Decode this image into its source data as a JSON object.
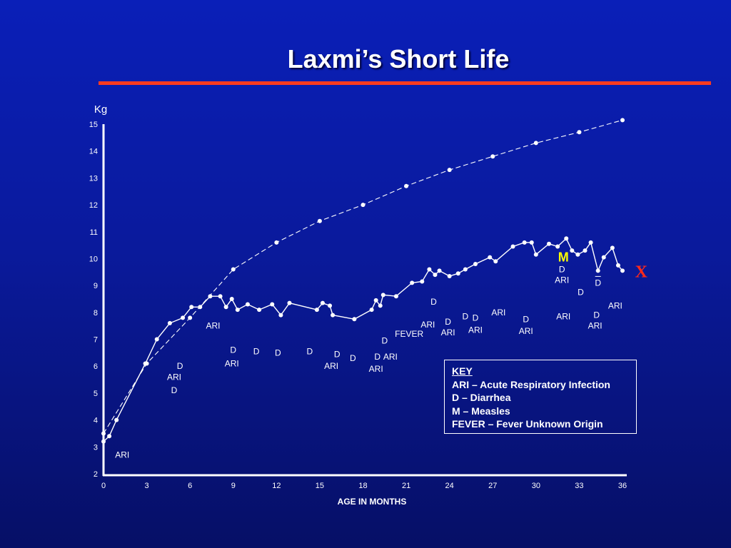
{
  "title": "Laxmi’s Short Life",
  "key": {
    "title": "KEY",
    "items": [
      "ARI – Acute Respiratory Infection",
      "D – Diarrhea",
      "M – Measles",
      "FEVER – Fever Unknown Origin"
    ]
  },
  "colors": {
    "background": "#0a1a9c",
    "title_rule": "#ff3b1f",
    "measles_marker": "#ffff00",
    "death_marker": "#ff2a1a",
    "lines": "#ffffff"
  },
  "chart_data": {
    "type": "line",
    "title": "Laxmi’s Short Life",
    "xlabel": "AGE IN MONTHS",
    "ylabel": "Kg",
    "xlim": [
      0,
      36
    ],
    "ylim": [
      2,
      15
    ],
    "xticks": [
      0,
      3,
      6,
      9,
      12,
      15,
      18,
      21,
      24,
      27,
      30,
      33,
      36
    ],
    "yticks": [
      2,
      3,
      4,
      5,
      6,
      7,
      8,
      9,
      10,
      11,
      12,
      13,
      14,
      15
    ],
    "grid": false,
    "series": [
      {
        "style": "dashed",
        "x": [
          0.0,
          3.0,
          6.0,
          9.0,
          12.0,
          15.0,
          18.0,
          21.0,
          24.0,
          27.0,
          30.0,
          33.0,
          36.0
        ],
        "y": [
          3.5,
          6.1,
          7.8,
          9.6,
          10.6,
          11.4,
          12.0,
          12.7,
          13.3,
          13.8,
          14.3,
          14.7,
          15.15
        ]
      },
      {
        "style": "solid",
        "x": [
          0.0,
          0.4,
          0.9,
          2.9,
          3.7,
          4.6,
          5.5,
          6.1,
          6.7,
          7.4,
          8.1,
          8.5,
          8.9,
          9.3,
          10.0,
          10.8,
          11.7,
          12.3,
          12.9,
          14.8,
          15.2,
          15.7,
          15.9,
          17.4,
          18.6,
          18.9,
          19.2,
          19.4,
          20.3,
          21.4,
          22.1,
          22.6,
          23.0,
          23.3,
          24.0,
          24.6,
          25.1,
          25.8,
          26.8,
          27.2,
          28.4,
          29.2,
          29.7,
          30.0,
          30.9,
          31.5,
          32.1,
          32.5,
          32.9,
          33.4,
          33.8,
          34.3,
          34.7,
          35.3,
          35.7
        ],
        "y": [
          3.2,
          3.4,
          4.0,
          6.1,
          7.0,
          7.6,
          7.8,
          8.2,
          8.2,
          8.6,
          8.6,
          8.2,
          8.5,
          8.1,
          8.3,
          8.1,
          8.3,
          7.9,
          8.35,
          8.1,
          8.35,
          8.25,
          7.9,
          7.75,
          8.1,
          8.45,
          8.25,
          8.65,
          8.6,
          9.1,
          9.15,
          9.6,
          9.4,
          9.55,
          9.35,
          9.45,
          9.6,
          9.8,
          10.05,
          9.9,
          10.45,
          10.6,
          10.6,
          10.15,
          10.55,
          10.45,
          10.75,
          10.3,
          10.15,
          10.3,
          10.6,
          9.55,
          10.05,
          10.4,
          9.75
        ]
      }
    ],
    "final_point": {
      "x": 36.0,
      "y": 9.55
    },
    "markers": {
      "measles": {
        "text": "M",
        "x": 31.9,
        "y": 10.05
      },
      "death": {
        "text": "X",
        "x": 37.3,
        "y": 9.55
      }
    },
    "annotations": [
      {
        "text": "ARI",
        "x": 1.3,
        "y": 2.7
      },
      {
        "text": "D",
        "x": 5.3,
        "y": 6.0
      },
      {
        "text": "ARI",
        "x": 4.9,
        "y": 5.6
      },
      {
        "text": "D",
        "x": 4.9,
        "y": 5.1
      },
      {
        "text": "ARI",
        "x": 7.6,
        "y": 7.5
      },
      {
        "text": "D",
        "x": 9.0,
        "y": 6.6
      },
      {
        "text": "ARI",
        "x": 8.9,
        "y": 6.1
      },
      {
        "text": "D",
        "x": 10.6,
        "y": 6.55
      },
      {
        "text": "D",
        "x": 12.1,
        "y": 6.5
      },
      {
        "text": "D",
        "x": 14.3,
        "y": 6.55
      },
      {
        "text": "D",
        "x": 16.2,
        "y": 6.45
      },
      {
        "text": "ARI",
        "x": 15.8,
        "y": 6.0
      },
      {
        "text": "D",
        "x": 17.3,
        "y": 6.3
      },
      {
        "text": "D",
        "x": 19.5,
        "y": 6.95
      },
      {
        "text": "D",
        "x": 19.0,
        "y": 6.35
      },
      {
        "text": "ARI",
        "x": 19.9,
        "y": 6.35
      },
      {
        "text": "ARI",
        "x": 18.9,
        "y": 5.9
      },
      {
        "text": "FEVER",
        "x": 21.2,
        "y": 7.2
      },
      {
        "text": "ARI",
        "x": 22.5,
        "y": 7.55
      },
      {
        "text": "D",
        "x": 22.9,
        "y": 8.4
      },
      {
        "text": "D",
        "x": 23.9,
        "y": 7.65
      },
      {
        "text": "ARI",
        "x": 23.9,
        "y": 7.25
      },
      {
        "text": "D",
        "x": 25.1,
        "y": 7.85
      },
      {
        "text": "D",
        "x": 25.8,
        "y": 7.8
      },
      {
        "text": "ARI",
        "x": 25.8,
        "y": 7.35
      },
      {
        "text": "ARI",
        "x": 27.4,
        "y": 8.0
      },
      {
        "text": "D",
        "x": 29.3,
        "y": 7.75
      },
      {
        "text": "ARI",
        "x": 29.3,
        "y": 7.3
      },
      {
        "text": "D",
        "x": 31.8,
        "y": 9.6
      },
      {
        "text": "ARI",
        "x": 31.8,
        "y": 9.2
      },
      {
        "text": "ARI",
        "x": 31.9,
        "y": 7.85
      },
      {
        "text": "D",
        "x": 33.1,
        "y": 8.75
      },
      {
        "text": "D",
        "x": 34.3,
        "y": 9.1
      },
      {
        "text": "ARI",
        "x": 35.5,
        "y": 8.25
      },
      {
        "text": "D",
        "x": 34.2,
        "y": 7.9
      },
      {
        "text": "ARI",
        "x": 34.1,
        "y": 7.5
      }
    ]
  }
}
